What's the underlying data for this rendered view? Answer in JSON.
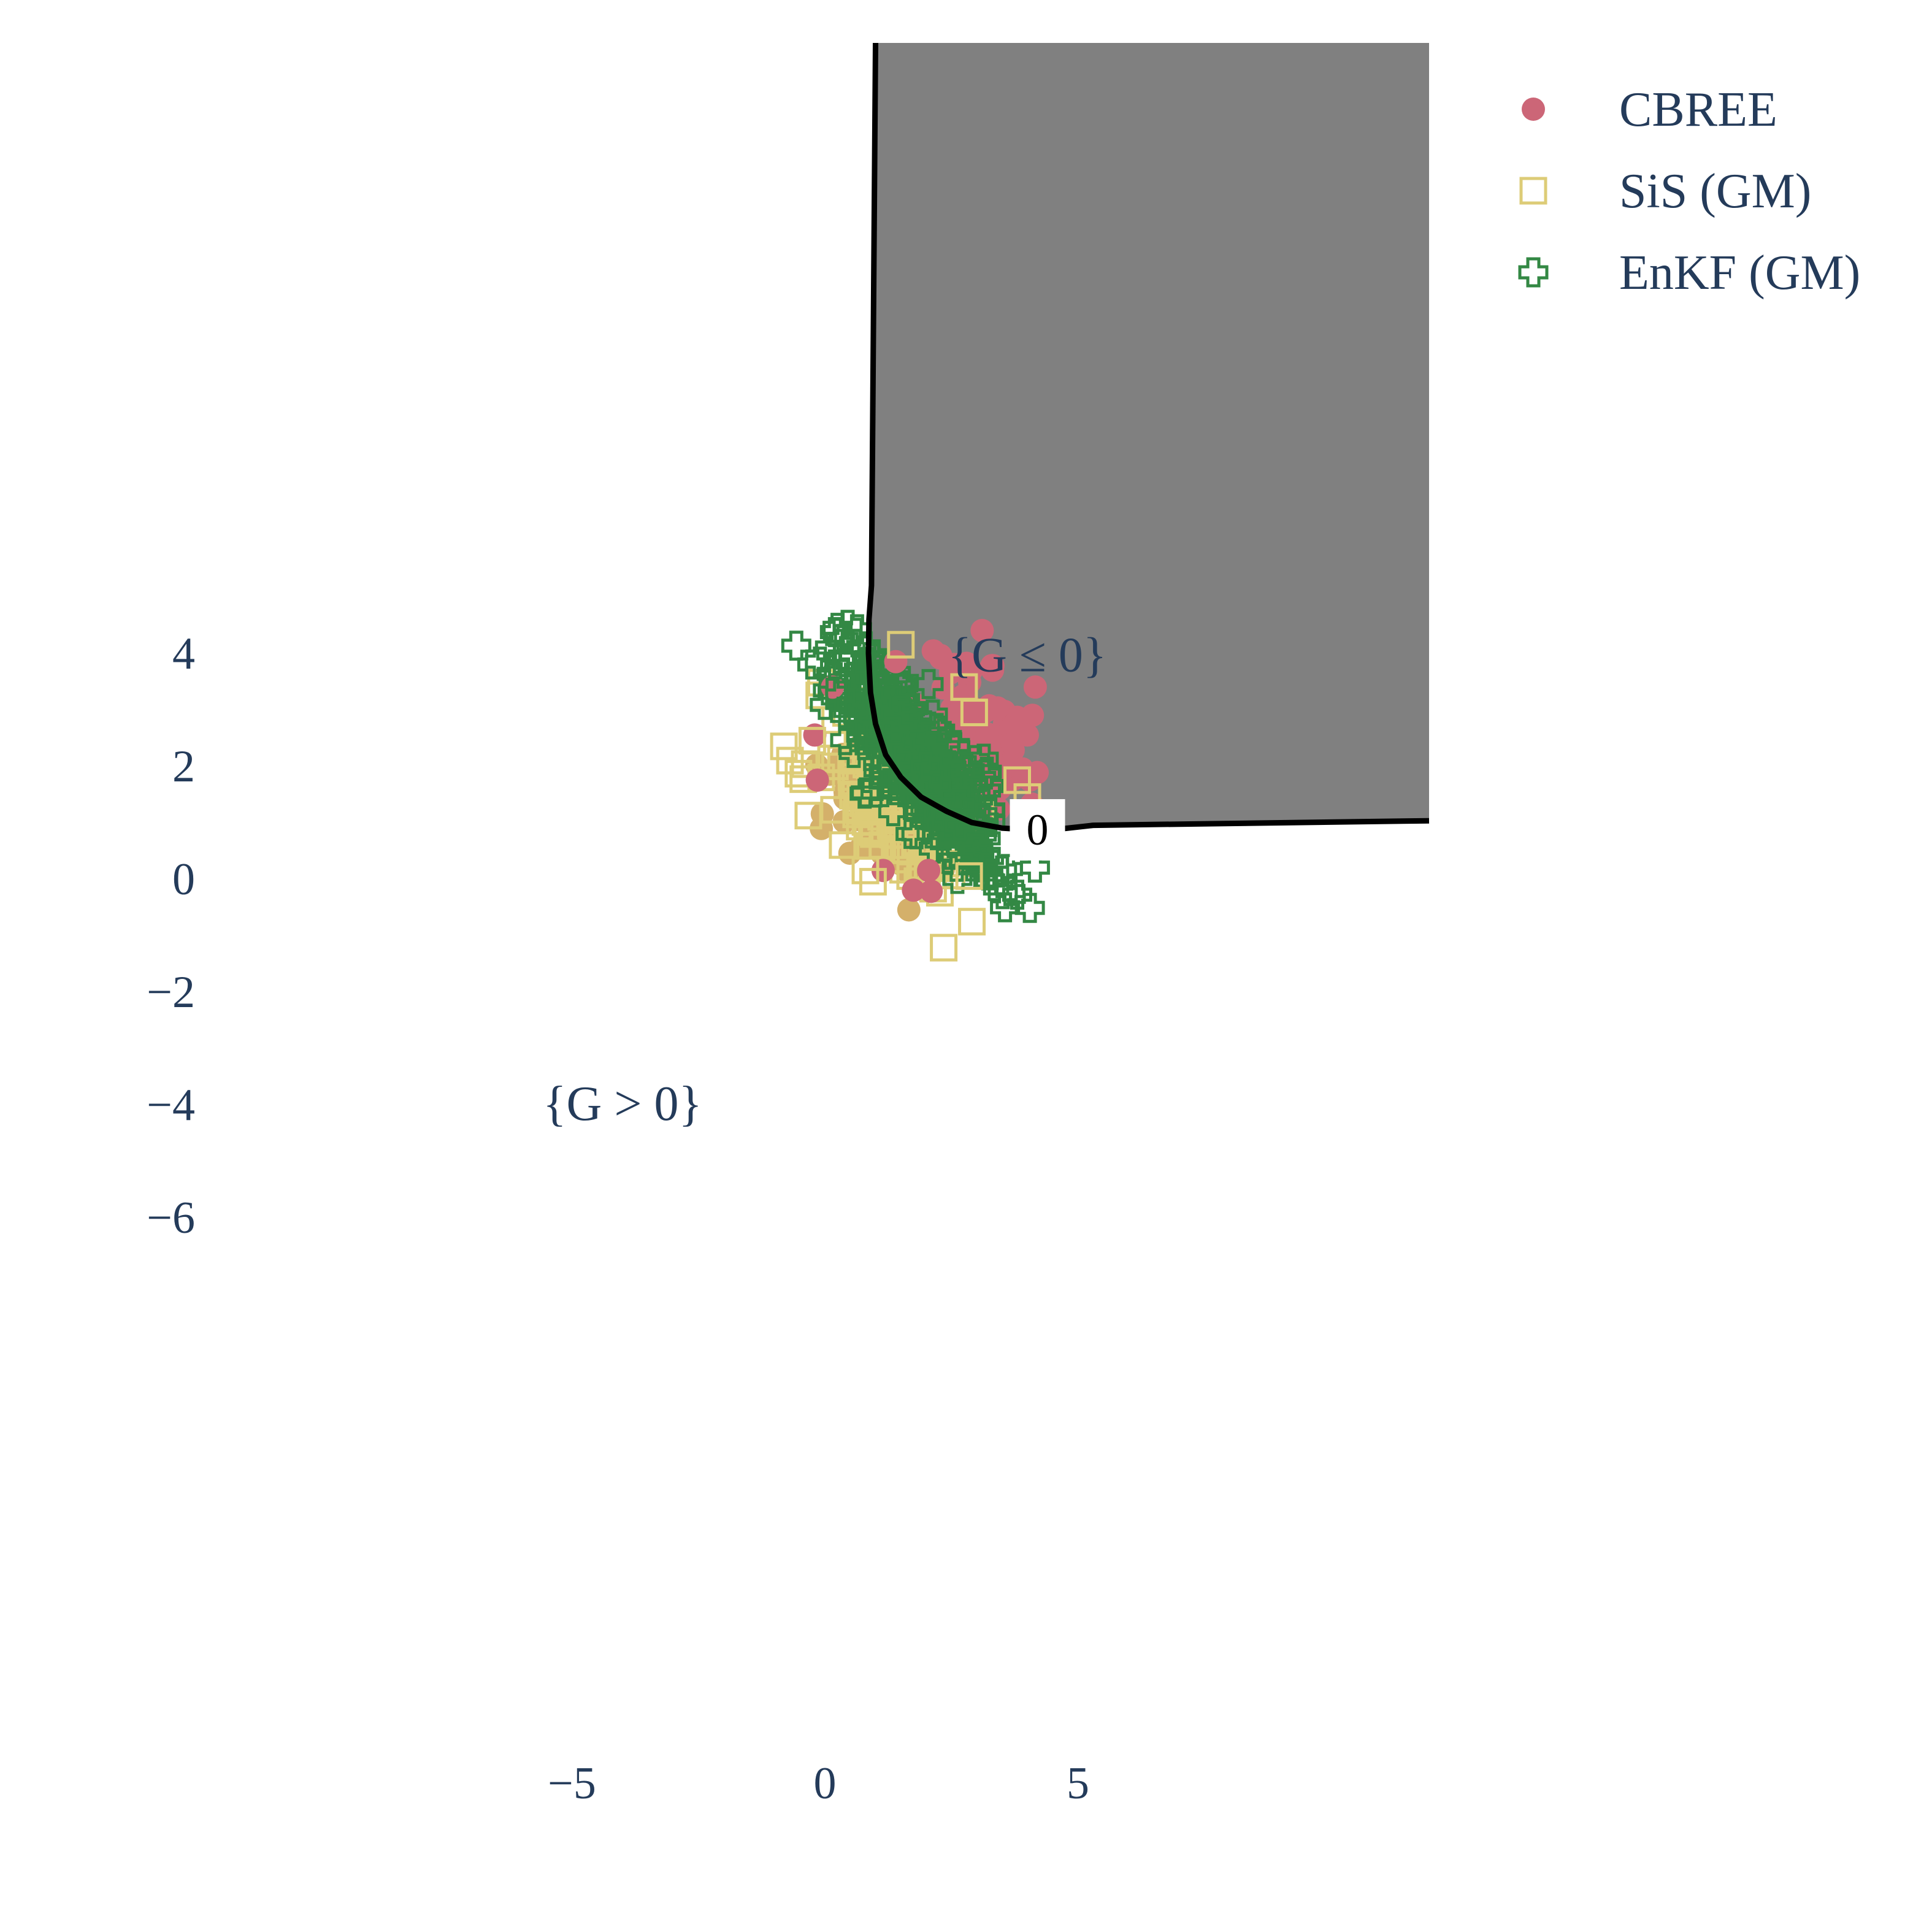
{
  "chart_data": {
    "type": "scatter",
    "xlim": [
      -5.8,
      5.9
    ],
    "ylim": [
      -6.5,
      5.8
    ],
    "x_ticks": [
      {
        "value": -5,
        "label": "−5"
      },
      {
        "value": 0,
        "label": "0"
      },
      {
        "value": 5,
        "label": "5"
      }
    ],
    "y_ticks": [
      {
        "value": 4,
        "label": "4"
      },
      {
        "value": 2,
        "label": "2"
      },
      {
        "value": 0,
        "label": "0"
      },
      {
        "value": -2,
        "label": "−2"
      },
      {
        "value": -4,
        "label": "−4"
      },
      {
        "value": -6,
        "label": "−6"
      }
    ],
    "grid": false,
    "legend_position": "top-right",
    "failure_region": {
      "fill": "#808080",
      "boundary_color": "#000000",
      "contour_level_label": "0",
      "boundary": [
        [
          1.0,
          5.8
        ],
        [
          0.92,
          5.2
        ],
        [
          0.87,
          4.6
        ],
        [
          0.86,
          4.0
        ],
        [
          0.9,
          3.3
        ],
        [
          1.0,
          2.75
        ],
        [
          1.2,
          2.2
        ],
        [
          1.5,
          1.8
        ],
        [
          1.9,
          1.45
        ],
        [
          2.4,
          1.2
        ],
        [
          2.9,
          1.0
        ],
        [
          3.5,
          0.9
        ],
        [
          4.1,
          0.87
        ],
        [
          4.7,
          0.89
        ],
        [
          5.3,
          0.95
        ],
        [
          5.9,
          1.03
        ]
      ]
    },
    "annotations": [
      {
        "text": "{G ≤ 0}",
        "x": 4.0,
        "y": 3.95
      },
      {
        "text": "{G > 0}",
        "x": -4.0,
        "y": -4.0
      }
    ],
    "series": [
      {
        "name": "CBREE",
        "marker": "circle",
        "color": "#cc6677",
        "filled": true
      },
      {
        "name": "SiS (GM)",
        "marker": "square",
        "color": "#ddcc77",
        "filled": false
      },
      {
        "name": "EnKF (GM)",
        "marker": "plus",
        "color": "#338844",
        "filled": false
      }
    ],
    "clouds": [
      {
        "series": 0,
        "n": 110,
        "cx": 3.0,
        "cy": 2.5,
        "sx": 0.5,
        "sy": 0.75,
        "rho": -0.3,
        "seed": 11
      },
      {
        "series": 0,
        "n": 140,
        "cx": 1.3,
        "cy": 1.1,
        "sx": 0.55,
        "sy": 0.55,
        "rho": -0.5,
        "seed": 12,
        "color": "#d4b06a"
      },
      {
        "series": 1,
        "n": 160,
        "cx": 1.35,
        "cy": 1.3,
        "sx": 0.7,
        "sy": 0.75,
        "rho": -0.55,
        "seed": 21
      },
      {
        "series": 2,
        "n": 380,
        "cx": 1.85,
        "cy": 2.05,
        "sx": 0.8,
        "sy": 0.95,
        "rho": -0.82,
        "seed": 31
      }
    ],
    "outliers": [
      {
        "series": 0,
        "points": [
          [
            -0.2,
            2.55
          ],
          [
            -0.15,
            1.75
          ],
          [
            1.4,
            3.85
          ],
          [
            2.55,
            3.8
          ],
          [
            2.8,
            3.82
          ],
          [
            3.3,
            3.78
          ],
          [
            4.1,
            2.9
          ],
          [
            4.0,
            2.55
          ],
          [
            3.9,
            1.95
          ],
          [
            4.05,
            1.75
          ],
          [
            3.7,
            2.4
          ],
          [
            1.75,
            -0.2
          ],
          [
            2.1,
            -0.22
          ],
          [
            2.05,
            0.15
          ],
          [
            1.15,
            0.15
          ],
          [
            0.15,
            3.4
          ]
        ]
      },
      {
        "series": 1,
        "points": [
          [
            -0.25,
            2.45
          ],
          [
            1.5,
            4.15
          ],
          [
            2.75,
            3.4
          ],
          [
            4.0,
            1.45
          ],
          [
            3.8,
            1.75
          ],
          [
            2.95,
            2.95
          ],
          [
            0.95,
            -0.05
          ],
          [
            2.85,
            0.05
          ],
          [
            0.8,
            0.15
          ],
          [
            0.35,
            0.6
          ]
        ]
      },
      {
        "series": 2,
        "points": [
          [
            0.25,
            4.45
          ],
          [
            0.3,
            4.25
          ],
          [
            0.1,
            4.1
          ],
          [
            -0.25,
            3.8
          ],
          [
            -0.1,
            3.85
          ],
          [
            0.2,
            3.8
          ],
          [
            0.15,
            3.3
          ],
          [
            0.3,
            3.25
          ],
          [
            0.8,
            4.05
          ],
          [
            4.15,
            0.2
          ],
          [
            3.8,
            -0.28
          ],
          [
            3.5,
            0.15
          ],
          [
            4.0,
            0.7
          ],
          [
            1.35,
            1.2
          ],
          [
            3.2,
            1.9
          ]
        ]
      }
    ]
  }
}
